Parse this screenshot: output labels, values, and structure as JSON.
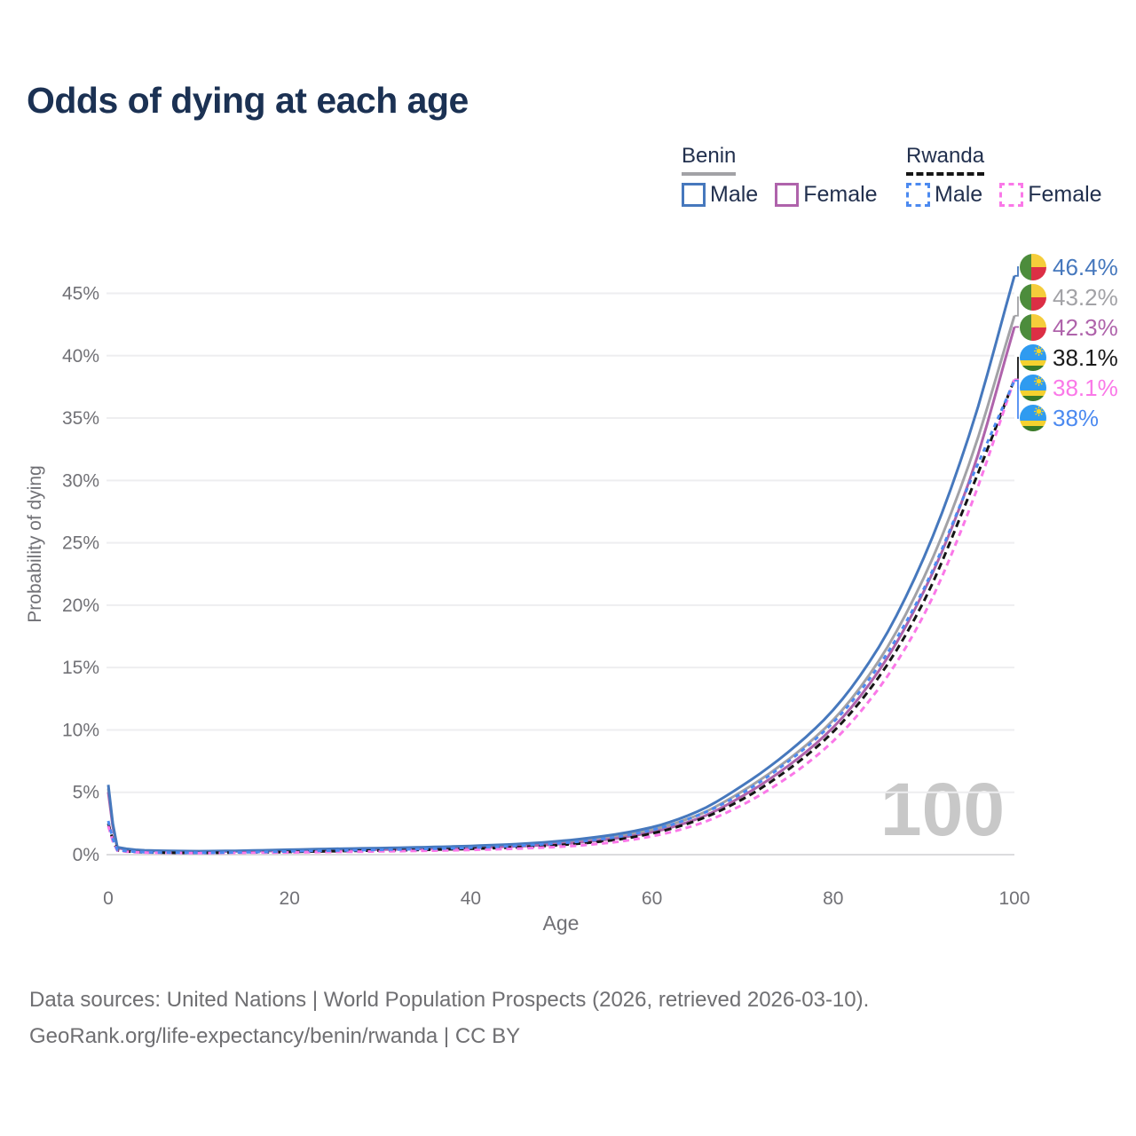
{
  "title": "Odds of dying at each age",
  "legend": {
    "benin": {
      "label": "Benin",
      "male_label": "Male",
      "female_label": "Female"
    },
    "rwanda": {
      "label": "Rwanda",
      "male_label": "Male",
      "female_label": "Female"
    }
  },
  "footer": {
    "line1": "Data sources: United Nations | World Population Prospects (2026, retrieved 2026-03-10).",
    "line2": "GeoRank.org/life-expectancy/benin/rwanda | CC BY"
  },
  "chart_data": {
    "type": "line",
    "xlabel": "Age",
    "ylabel": "Probability of dying",
    "x_ticks": [
      0,
      20,
      40,
      60,
      80,
      100
    ],
    "y_ticks_percent": [
      0,
      5,
      10,
      15,
      20,
      25,
      30,
      35,
      40,
      45
    ],
    "xlim": [
      0,
      100
    ],
    "ylim_percent": [
      0,
      47.6
    ],
    "grid": true,
    "legend_position": "top-right",
    "hover_age_watermark": "100",
    "ages": [
      0,
      1,
      5,
      10,
      15,
      20,
      25,
      30,
      35,
      40,
      45,
      50,
      55,
      60,
      65,
      70,
      75,
      80,
      85,
      90,
      95,
      100
    ],
    "series": [
      {
        "name": "Benin Both Sexes",
        "country": "Benin",
        "style": "solid",
        "color": "#a2a2a6",
        "values": [
          5.3,
          0.57,
          0.31,
          0.26,
          0.29,
          0.36,
          0.42,
          0.47,
          0.53,
          0.62,
          0.76,
          0.98,
          1.36,
          2.0,
          3.15,
          5.1,
          7.6,
          10.8,
          15.5,
          22.2,
          31.3,
          43.2
        ],
        "end_label": "43.2%",
        "end_label_color": "#a2a2a6",
        "flag": "benin",
        "label_order": 1
      },
      {
        "name": "Benin Female",
        "country": "Benin",
        "style": "solid",
        "color": "#af63ab",
        "values": [
          5.0,
          0.54,
          0.3,
          0.25,
          0.27,
          0.31,
          0.36,
          0.41,
          0.47,
          0.55,
          0.67,
          0.86,
          1.21,
          1.8,
          2.87,
          4.7,
          7.1,
          10.2,
          14.7,
          21.1,
          29.9,
          42.3
        ],
        "end_label": "42.3%",
        "end_label_color": "#af63ab",
        "flag": "benin",
        "label_order": 2
      },
      {
        "name": "Benin Male",
        "country": "Benin",
        "style": "solid",
        "color": "#4678bd",
        "values": [
          5.6,
          0.6,
          0.33,
          0.28,
          0.32,
          0.4,
          0.47,
          0.53,
          0.6,
          0.7,
          0.85,
          1.1,
          1.52,
          2.2,
          3.45,
          5.55,
          8.2,
          11.6,
          16.6,
          23.8,
          33.6,
          46.4
        ],
        "end_label": "46.4%",
        "end_label_color": "#4678bd",
        "flag": "benin",
        "label_order": 0
      },
      {
        "name": "Rwanda Both Sexes",
        "country": "Rwanda",
        "style": "dashed",
        "color": "#151515",
        "dash": "8 5",
        "values": [
          2.5,
          0.35,
          0.17,
          0.14,
          0.17,
          0.22,
          0.28,
          0.33,
          0.39,
          0.47,
          0.59,
          0.78,
          1.1,
          1.7,
          2.75,
          4.45,
          6.8,
          9.85,
          14.2,
          20.3,
          28.8,
          38.1
        ],
        "end_label": "38.1%",
        "end_label_color": "#1a1a1a",
        "flag": "rwanda",
        "label_order": 3
      },
      {
        "name": "Rwanda Female",
        "country": "Rwanda",
        "style": "dashed",
        "color": "#fa78e8",
        "dash": "7 5",
        "values": [
          2.3,
          0.32,
          0.16,
          0.13,
          0.15,
          0.18,
          0.22,
          0.26,
          0.31,
          0.38,
          0.48,
          0.64,
          0.93,
          1.47,
          2.42,
          4.0,
          6.2,
          9.1,
          13.3,
          19.2,
          27.6,
          38.1
        ],
        "end_label": "38.1%",
        "end_label_color": "#fa78e8",
        "flag": "rwanda",
        "label_order": 4
      },
      {
        "name": "Rwanda Male",
        "country": "Rwanda",
        "style": "dashed",
        "color": "#4c8af0",
        "dash": "5 5",
        "values": [
          2.7,
          0.38,
          0.18,
          0.15,
          0.19,
          0.26,
          0.33,
          0.39,
          0.46,
          0.56,
          0.71,
          0.93,
          1.3,
          1.97,
          3.13,
          4.95,
          7.45,
          10.6,
          15.1,
          21.3,
          29.7,
          38.0
        ],
        "end_label": "38%",
        "end_label_color": "#4c8af0",
        "flag": "rwanda",
        "label_order": 5
      }
    ],
    "flag_colors": {
      "benin": {
        "green": "#4c8c3c",
        "yellow": "#f5cd3b",
        "red": "#dc2f45"
      },
      "rwanda": {
        "blue": "#2f9bf0",
        "yellow": "#f5d12f",
        "green": "#397a27",
        "sun": "#f9d625"
      }
    },
    "axis_text_color": "#717176",
    "grid_color": "#eeeef0",
    "baseline_color": "#dcdcde",
    "watermark_color": "#c8c8c8"
  }
}
